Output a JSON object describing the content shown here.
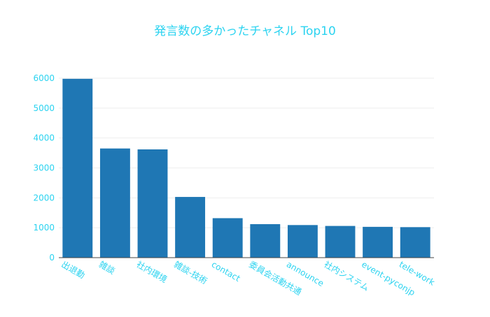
{
  "chart_data": {
    "type": "bar",
    "title": "発言数の多かったチャネル Top10",
    "xlabel": "",
    "ylabel": "",
    "categories": [
      "出退勤",
      "雑談",
      "社内環境",
      "雑談-技術",
      "contact",
      "委員会活動共通",
      "announce",
      "社内システム",
      "event-pyconjp",
      "tele-work"
    ],
    "values": [
      5980,
      3650,
      3620,
      2030,
      1320,
      1120,
      1090,
      1060,
      1030,
      1020
    ],
    "ylim": [
      0,
      6000
    ],
    "yticks": [
      0,
      1000,
      2000,
      3000,
      4000,
      5000,
      6000
    ],
    "grid": true,
    "colors": {
      "bar": "#1f77b4",
      "text": "#2bd3f0",
      "grid": "#eeeeee",
      "axis": "#444444"
    }
  }
}
